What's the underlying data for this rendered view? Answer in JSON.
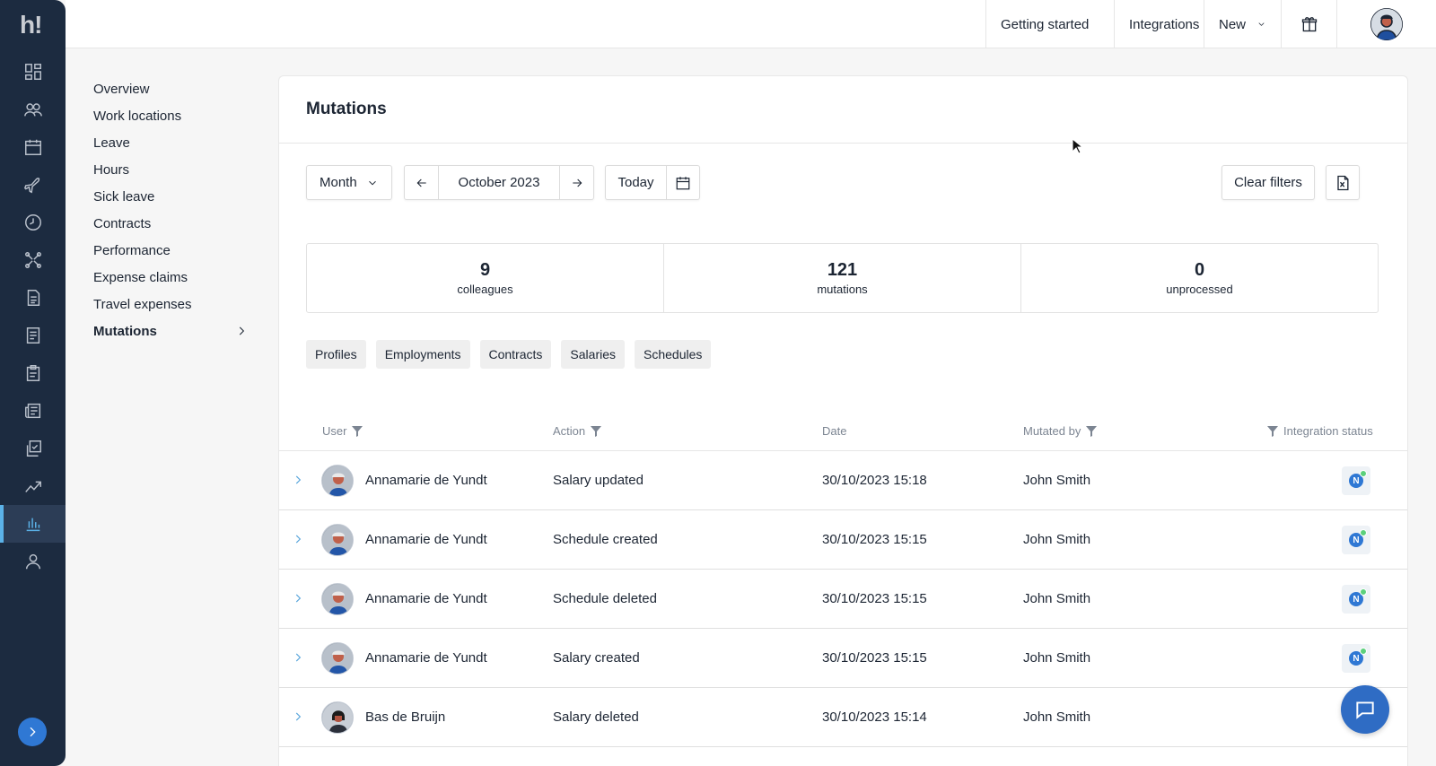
{
  "app": {
    "logo_text": "h!"
  },
  "topbar": {
    "getting_started": "Getting started",
    "integrations": "Integrations",
    "new_label": "New"
  },
  "subnav": {
    "items": [
      {
        "label": "Overview"
      },
      {
        "label": "Work locations"
      },
      {
        "label": "Leave"
      },
      {
        "label": "Hours"
      },
      {
        "label": "Sick leave"
      },
      {
        "label": "Contracts"
      },
      {
        "label": "Performance"
      },
      {
        "label": "Expense claims"
      },
      {
        "label": "Travel expenses"
      },
      {
        "label": "Mutations",
        "active": true
      }
    ]
  },
  "main": {
    "title": "Mutations",
    "period_select": "Month",
    "current_period": "October 2023",
    "today_label": "Today",
    "clear_filters_label": "Clear filters",
    "stats": [
      {
        "value": "9",
        "label": "colleagues"
      },
      {
        "value": "121",
        "label": "mutations"
      },
      {
        "value": "0",
        "label": "unprocessed"
      }
    ],
    "chips": [
      "Profiles",
      "Employments",
      "Contracts",
      "Salaries",
      "Schedules"
    ],
    "columns": {
      "user": "User",
      "action": "Action",
      "date": "Date",
      "mutated_by": "Mutated by",
      "integration_status": "Integration status"
    },
    "rows": [
      {
        "user": "Annamarie de Yundt",
        "action": "Salary updated",
        "date": "30/10/2023 15:18",
        "mutated_by": "John Smith",
        "status_badge": "N"
      },
      {
        "user": "Annamarie de Yundt",
        "action": "Schedule created",
        "date": "30/10/2023 15:15",
        "mutated_by": "John Smith",
        "status_badge": "N"
      },
      {
        "user": "Annamarie de Yundt",
        "action": "Schedule deleted",
        "date": "30/10/2023 15:15",
        "mutated_by": "John Smith",
        "status_badge": "N"
      },
      {
        "user": "Annamarie de Yundt",
        "action": "Salary created",
        "date": "30/10/2023 15:15",
        "mutated_by": "John Smith",
        "status_badge": "N"
      },
      {
        "user": "Bas de Bruijn",
        "action": "Salary deleted",
        "date": "30/10/2023 15:14",
        "mutated_by": "John Smith",
        "status_badge": ""
      }
    ]
  },
  "colors": {
    "rail_bg": "#1c2b40",
    "rail_active_accent": "#5bb2e8",
    "primary_blue": "#2f78d4",
    "status_green": "#5cd07b"
  },
  "icons": {
    "rail": [
      "dashboard-icon",
      "people-icon",
      "calendar-icon",
      "plane-icon",
      "clock-icon",
      "puzzle-icon",
      "document-icon",
      "receipt-icon",
      "clipboard-icon",
      "news-icon",
      "checklist-icon",
      "chart-up-icon",
      "bar-chart-icon",
      "user-icon"
    ]
  }
}
